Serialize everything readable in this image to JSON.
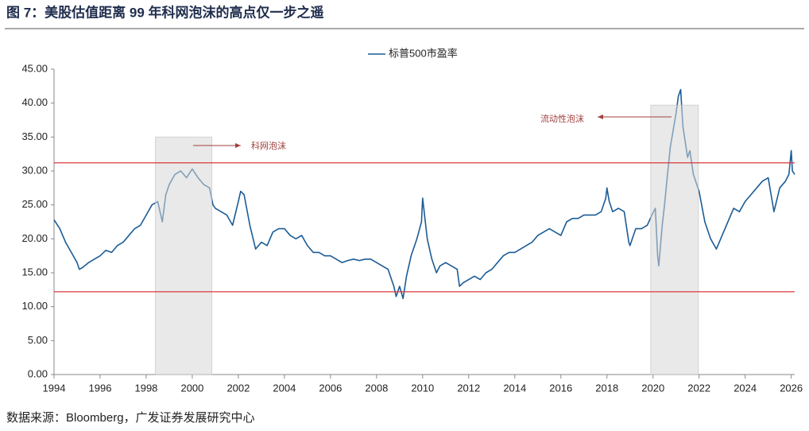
{
  "chart_data": {
    "type": "line",
    "title": "图 7：美股估值距离 99 年科网泡沫的高点仅一步之遥",
    "source": "数据来源：Bloomberg，广发证券发展研究中心",
    "x": [
      1994.0,
      1994.25,
      1994.5,
      1994.75,
      1995.0,
      1995.1,
      1995.25,
      1995.5,
      1995.75,
      1996.0,
      1996.25,
      1996.5,
      1996.75,
      1997.0,
      1997.25,
      1997.5,
      1997.75,
      1998.0,
      1998.25,
      1998.5,
      1998.7,
      1998.85,
      1999.0,
      1999.25,
      1999.5,
      1999.75,
      2000.0,
      2000.25,
      2000.5,
      2000.75,
      2000.9,
      2001.0,
      2001.25,
      2001.5,
      2001.75,
      2002.0,
      2002.1,
      2002.25,
      2002.5,
      2002.75,
      2003.0,
      2003.25,
      2003.5,
      2003.75,
      2004.0,
      2004.25,
      2004.5,
      2004.75,
      2005.0,
      2005.25,
      2005.5,
      2005.75,
      2006.0,
      2006.25,
      2006.5,
      2006.75,
      2007.0,
      2007.25,
      2007.5,
      2007.75,
      2008.0,
      2008.25,
      2008.5,
      2008.75,
      2008.85,
      2009.0,
      2009.15,
      2009.3,
      2009.5,
      2009.75,
      2009.95,
      2010.0,
      2010.1,
      2010.2,
      2010.4,
      2010.6,
      2010.75,
      2011.0,
      2011.25,
      2011.5,
      2011.6,
      2011.75,
      2012.0,
      2012.25,
      2012.5,
      2012.75,
      2013.0,
      2013.25,
      2013.5,
      2013.75,
      2014.0,
      2014.25,
      2014.5,
      2014.75,
      2015.0,
      2015.25,
      2015.5,
      2015.75,
      2016.0,
      2016.25,
      2016.5,
      2016.75,
      2017.0,
      2017.25,
      2017.5,
      2017.75,
      2017.95,
      2018.0,
      2018.1,
      2018.25,
      2018.5,
      2018.75,
      2018.95,
      2019.0,
      2019.25,
      2019.5,
      2019.75,
      2019.95,
      2020.1,
      2020.2,
      2020.25,
      2020.4,
      2020.5,
      2020.6,
      2020.75,
      2020.9,
      2021.0,
      2021.1,
      2021.2,
      2021.3,
      2021.5,
      2021.6,
      2021.75,
      2021.9,
      2022.0,
      2022.25,
      2022.5,
      2022.75,
      2023.0,
      2023.25,
      2023.5,
      2023.75,
      2024.0,
      2024.25,
      2024.5,
      2024.75,
      2025.0,
      2025.25,
      2025.5,
      2025.75,
      2025.9,
      2026.0,
      2026.05,
      2026.15
    ],
    "series": [
      {
        "name": "标普500市盈率",
        "color": "#1b5c96",
        "values": [
          22.8,
          21.5,
          19.5,
          18.0,
          16.5,
          15.5,
          15.8,
          16.5,
          17.0,
          17.5,
          18.3,
          18.0,
          19.0,
          19.5,
          20.5,
          21.5,
          22.0,
          23.5,
          25.0,
          25.5,
          22.5,
          26.5,
          28.0,
          29.5,
          30.0,
          29.0,
          30.3,
          29.0,
          28.0,
          27.5,
          25.0,
          24.5,
          24.0,
          23.5,
          22.0,
          25.5,
          27.0,
          26.5,
          22.0,
          18.5,
          19.5,
          19.0,
          21.0,
          21.5,
          21.5,
          20.5,
          20.0,
          20.5,
          19.0,
          18.0,
          18.0,
          17.5,
          17.5,
          17.0,
          16.5,
          16.8,
          17.0,
          16.8,
          17.0,
          17.0,
          16.5,
          16.0,
          15.5,
          13.0,
          11.5,
          13.0,
          11.2,
          14.5,
          17.5,
          20.0,
          22.5,
          26.0,
          23.0,
          20.0,
          17.0,
          15.0,
          16.0,
          16.5,
          16.0,
          15.5,
          13.0,
          13.5,
          14.0,
          14.5,
          14.0,
          15.0,
          15.5,
          16.5,
          17.5,
          18.0,
          18.0,
          18.5,
          19.0,
          19.5,
          20.5,
          21.0,
          21.5,
          21.0,
          20.5,
          22.5,
          23.0,
          23.0,
          23.5,
          23.5,
          23.5,
          24.0,
          26.0,
          27.5,
          25.5,
          24.0,
          24.5,
          24.0,
          19.5,
          19.0,
          21.5,
          21.5,
          22.0,
          23.5,
          24.5,
          17.5,
          16.0,
          22.0,
          25.0,
          28.5,
          33.5,
          36.5,
          38.5,
          41.0,
          42.0,
          36.5,
          32.0,
          33.0,
          29.5,
          28.0,
          27.0,
          22.5,
          20.0,
          18.5,
          20.5,
          22.5,
          24.5,
          24.0,
          25.5,
          26.5,
          27.5,
          28.5,
          29.0,
          24.0,
          27.5,
          28.5,
          29.5,
          33.0,
          30.0,
          29.5
        ]
      }
    ],
    "xlim": [
      1994,
      2026.15
    ],
    "xticks": [
      1994,
      1996,
      1998,
      2000,
      2002,
      2004,
      2006,
      2008,
      2010,
      2012,
      2014,
      2016,
      2018,
      2020,
      2022,
      2024,
      2026
    ],
    "ylim": [
      0,
      45
    ],
    "yticks": [
      {
        "value": 0,
        "label": "0.00"
      },
      {
        "value": 5,
        "label": "5.00"
      },
      {
        "value": 10,
        "label": "10.00"
      },
      {
        "value": 15,
        "label": "15.00"
      },
      {
        "value": 20,
        "label": "20.00"
      },
      {
        "value": 25,
        "label": "25.00"
      },
      {
        "value": 30,
        "label": "30.00"
      },
      {
        "value": 35,
        "label": "35.00"
      },
      {
        "value": 40,
        "label": "40.00"
      },
      {
        "value": 45,
        "label": "45.00"
      }
    ],
    "reference_lines": [
      {
        "value": 31.2,
        "color": "#d9383a"
      },
      {
        "value": 12.2,
        "color": "#d9383a"
      }
    ],
    "shaded_regions": [
      {
        "start": 1998.4,
        "end": 2000.85,
        "top": 35
      },
      {
        "start": 2019.9,
        "end": 2021.97,
        "top": 39.7
      }
    ],
    "annotations": [
      {
        "text": "科网泡沫",
        "color": "#a0413e"
      },
      {
        "text": "流动性泡沫",
        "color": "#a0413e"
      }
    ],
    "legend": "top"
  }
}
